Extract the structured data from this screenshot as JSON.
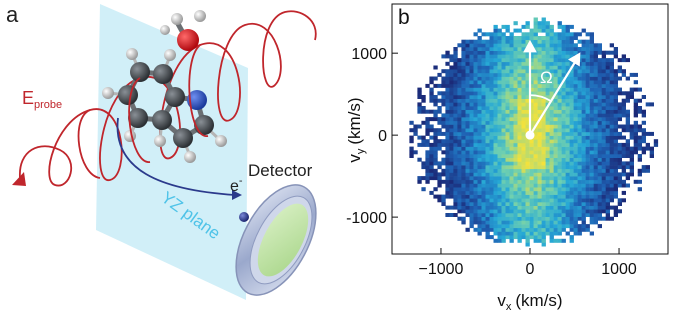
{
  "panel_a": {
    "label": "a",
    "probe_label": "E",
    "probe_subscript": "probe",
    "electron_label": "e",
    "electron_superscript": "-",
    "plane_label": "YZ plane",
    "detector_label": "Detector",
    "colors": {
      "plane": "#c9ecf7",
      "probe": "#c0262c",
      "electron_path": "#2b3a8c",
      "plane_text": "#4fc3e8",
      "carbon": "#3a3f44",
      "hydrogen": "#d9d9d9",
      "nitrogen": "#2a4fbf",
      "oxygen": "#d8121b",
      "detector_ring": "#aab6d3",
      "detector_face": "#bfe3a8"
    }
  },
  "panel_b": {
    "label": "b",
    "angle_label": "Ω",
    "chart_data": {
      "type": "heatmap",
      "title": "",
      "xlabel": "v",
      "xlabel_subscript": "x",
      "xlabel_unit": "(km/s)",
      "ylabel": "v",
      "ylabel_subscript": "y",
      "ylabel_unit": "(km/s)",
      "xlim": [
        -1550,
        1550
      ],
      "ylim": [
        -1450,
        1600
      ],
      "xticks": [
        -1000,
        0,
        1000
      ],
      "xtick_labels": [
        "−1000",
        "0",
        "1000"
      ],
      "yticks": [
        1000,
        0,
        -1000
      ],
      "ytick_labels": [
        "1000",
        "0",
        "-1000"
      ],
      "distribution_radius_kms": 1400,
      "grid": false,
      "colormap": [
        "#1b2a78",
        "#1f63b5",
        "#25a7d6",
        "#6fd0b0",
        "#f5e23a"
      ]
    }
  }
}
